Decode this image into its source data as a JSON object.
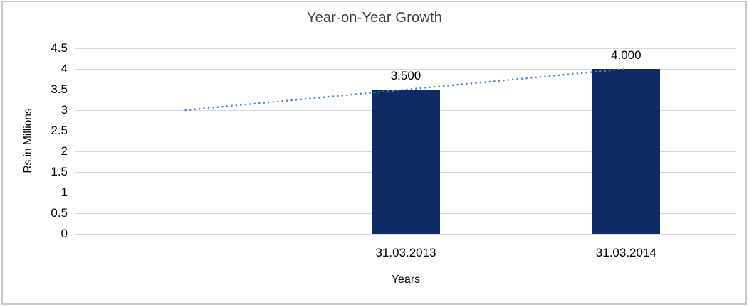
{
  "frame": {
    "border_color": "#c9c9c9",
    "background": "#ffffff"
  },
  "chart_data": {
    "type": "bar",
    "title": "Year-on-Year Growth",
    "categories": [
      "31.03.2013",
      "31.03.2014"
    ],
    "values": [
      3.5,
      4.0
    ],
    "data_labels": [
      "3.500",
      "4.000"
    ],
    "xlabel": "Years",
    "ylabel": "Rs.in Millions",
    "ylim": [
      0,
      4.5
    ],
    "ytick_step": 0.5,
    "ytick_labels": [
      "4.5",
      "4",
      "3.5",
      "3",
      "2.5",
      "2",
      "1.5",
      "1",
      "0.5",
      "0"
    ],
    "grid": "horizontal",
    "legend": "none",
    "bar_color": "#0f2b66",
    "num_category_slots": 3,
    "bar_start_slot": 1,
    "trendline": {
      "style": "dotted",
      "color": "#4f86c8",
      "points": [
        {
          "slot": 0,
          "value": 3.0
        },
        {
          "slot": 2,
          "value": 4.0
        }
      ]
    }
  }
}
